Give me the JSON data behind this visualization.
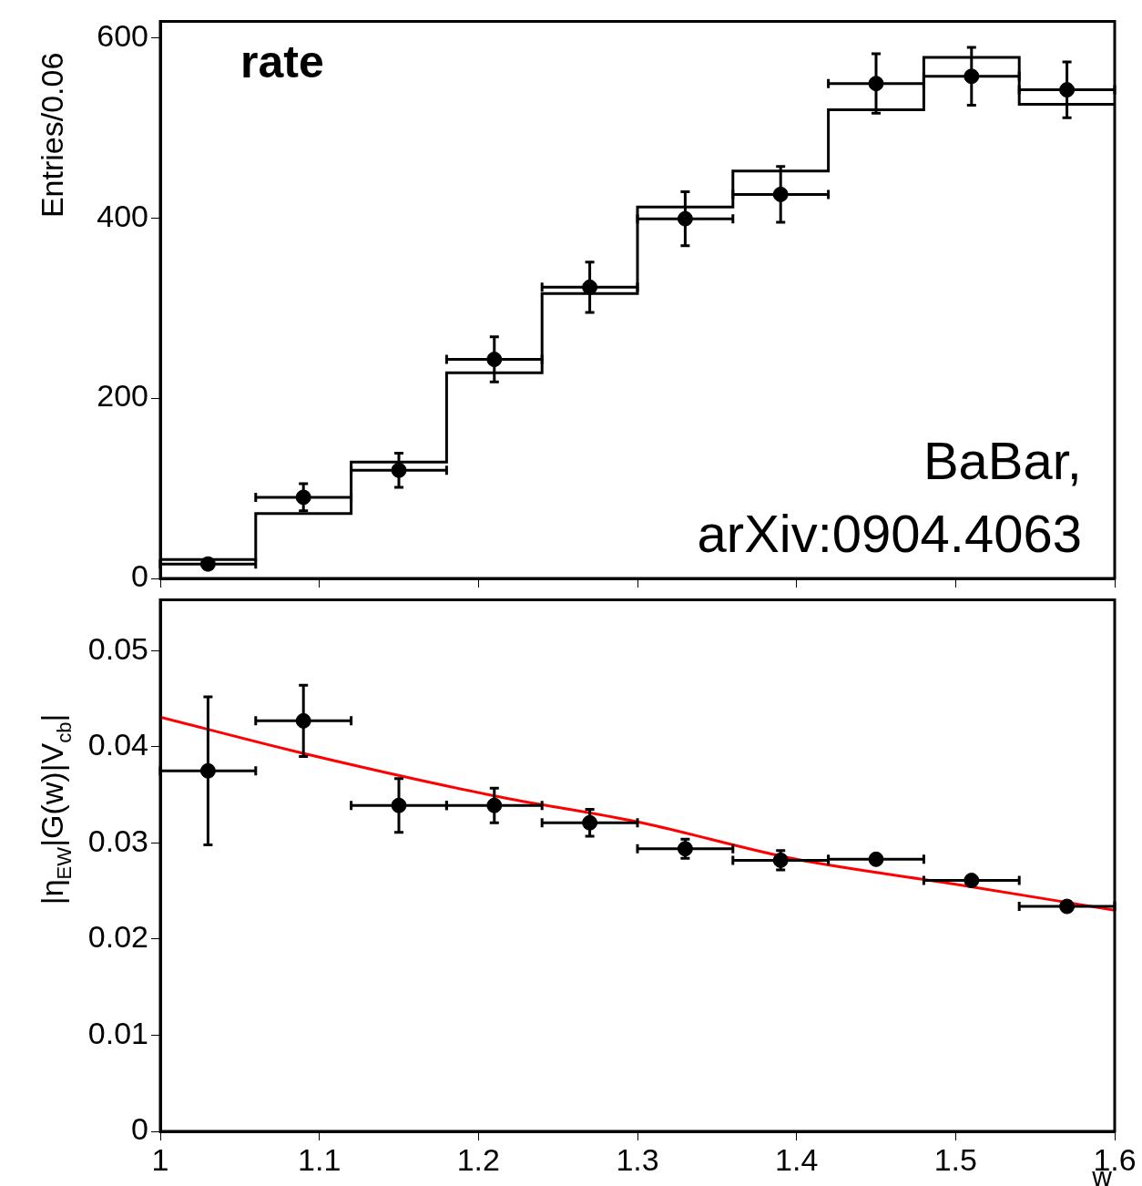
{
  "chart_data": [
    {
      "type": "histogram",
      "ylabel": "Entries/0.06",
      "annotations": [
        "rate",
        "BaBar,",
        "arXiv:0904.4063"
      ],
      "bins": [
        1.0,
        1.06,
        1.12,
        1.18,
        1.24,
        1.3,
        1.36,
        1.42,
        1.48,
        1.54,
        1.6
      ],
      "series": [
        {
          "color": "#000000",
          "values": [
            21,
            72,
            129,
            228,
            316,
            412,
            452,
            520,
            578,
            526
          ]
        },
        {
          "type": "scatter",
          "color": "#000000",
          "marker": "circle",
          "x": [
            1.03,
            1.09,
            1.15,
            1.21,
            1.27,
            1.33,
            1.39,
            1.45,
            1.51,
            1.57
          ],
          "values": [
            16,
            90,
            120,
            243,
            323,
            399,
            426,
            549,
            557,
            542
          ],
          "errors": [
            5,
            15,
            19,
            25,
            28,
            30,
            31,
            33,
            32,
            31
          ],
          "xerrors": [
            0.03,
            0.03,
            0.03,
            0.03,
            0.03,
            0.03,
            0.03,
            0.03,
            0.03,
            0.03
          ]
        }
      ],
      "xlim": [
        1,
        1.6
      ],
      "xticks": [
        1,
        1.1,
        1.2,
        1.3,
        1.4,
        1.5,
        1.6
      ],
      "ylim": [
        0,
        618
      ],
      "yticks": [
        0,
        200,
        400,
        600
      ],
      "tick_labels": "y",
      "grid": false,
      "legend": false
    },
    {
      "type": "scatter",
      "xlabel": "w",
      "ylabel": "|η$_{EW}$|G(w)|V$_{cb}$|",
      "series": [
        {
          "color": "#000000",
          "marker": "circle",
          "x": [
            1.03,
            1.09,
            1.15,
            1.21,
            1.27,
            1.33,
            1.39,
            1.45,
            1.51,
            1.57
          ],
          "values": [
            0.0375,
            0.0427,
            0.0339,
            0.0339,
            0.0321,
            0.0294,
            0.0282,
            0.0283,
            0.0261,
            0.0234
          ],
          "errors": [
            0.0077,
            0.0037,
            0.0028,
            0.0018,
            0.0014,
            0.001,
            0.001,
            null,
            null,
            null
          ],
          "xerrors": [
            0.03,
            0.03,
            0.03,
            0.03,
            0.03,
            0.03,
            0.03,
            0.03,
            0.03,
            0.03
          ]
        },
        {
          "type": "line",
          "color": "#ff0000",
          "marker": "none",
          "x": [
            1.0,
            1.088,
            1.21,
            1.3,
            1.4,
            1.5,
            1.6
          ],
          "values": [
            0.0431,
            0.0394,
            0.0349,
            0.0322,
            0.0283,
            0.0257,
            0.023
          ]
        }
      ],
      "xlim": [
        1,
        1.6
      ],
      "xticks": [
        1,
        1.1,
        1.2,
        1.3,
        1.4,
        1.5,
        1.6
      ],
      "ylim": [
        0,
        0.0553
      ],
      "yticks": [
        0,
        0.01,
        0.02,
        0.03,
        0.04,
        0.05
      ],
      "grid": false,
      "legend": false
    }
  ]
}
